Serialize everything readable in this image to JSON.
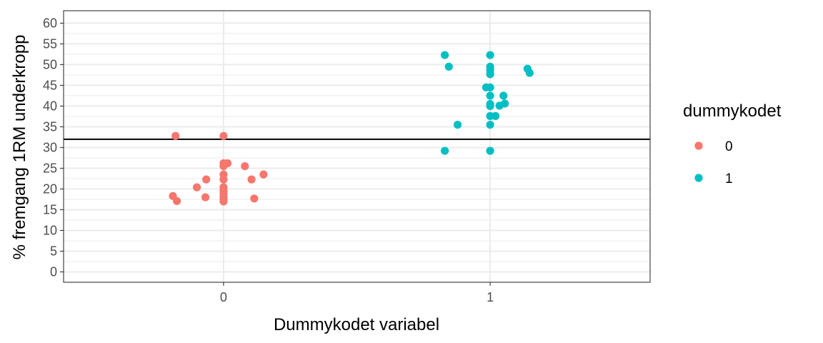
{
  "chart_data": {
    "type": "scatter",
    "title": "",
    "xlabel": "Dummykodet variabel",
    "ylabel": "% fremgang 1RM underkropp",
    "x_categories": [
      "0",
      "1"
    ],
    "xlim": [
      -0.6,
      1.6
    ],
    "ylim": [
      -2.5,
      63
    ],
    "y_ticks": [
      0,
      5,
      10,
      15,
      20,
      25,
      30,
      35,
      40,
      45,
      50,
      55,
      60
    ],
    "y_tick_labels": [
      "0",
      "5",
      "10",
      "15",
      "20",
      "25",
      "30",
      "35",
      "40",
      "45",
      "50",
      "55",
      "60"
    ],
    "hline": 32,
    "grid": true,
    "legend": {
      "title": "dummykodet",
      "placement": "right"
    },
    "series": [
      {
        "name": "0",
        "color": "#F8766D",
        "points": [
          {
            "x": -0.18,
            "y": 32.8
          },
          {
            "x": 0.0,
            "y": 32.8
          },
          {
            "x": 0.0,
            "y": 26.2
          },
          {
            "x": 0.015,
            "y": 26.2
          },
          {
            "x": 0.0,
            "y": 25.5
          },
          {
            "x": 0.08,
            "y": 25.5
          },
          {
            "x": 0.15,
            "y": 23.5
          },
          {
            "x": 0.0,
            "y": 23.5
          },
          {
            "x": -0.065,
            "y": 22.3
          },
          {
            "x": 0.0,
            "y": 22.3
          },
          {
            "x": 0.105,
            "y": 22.3
          },
          {
            "x": -0.1,
            "y": 20.4
          },
          {
            "x": 0.0,
            "y": 20.4
          },
          {
            "x": 0.0,
            "y": 19.6
          },
          {
            "x": 0.0,
            "y": 18.8
          },
          {
            "x": -0.19,
            "y": 18.3
          },
          {
            "x": 0.0,
            "y": 18.1
          },
          {
            "x": -0.068,
            "y": 18.0
          },
          {
            "x": 0.115,
            "y": 17.7
          },
          {
            "x": 0.0,
            "y": 17.5
          },
          {
            "x": -0.175,
            "y": 17.1
          },
          {
            "x": 0.0,
            "y": 17.0
          }
        ]
      },
      {
        "name": "1",
        "color": "#00BFC4",
        "points": [
          {
            "x": 0.83,
            "y": 52.3
          },
          {
            "x": 1.0,
            "y": 52.3
          },
          {
            "x": 0.845,
            "y": 49.5
          },
          {
            "x": 1.0,
            "y": 49.5
          },
          {
            "x": 1.0,
            "y": 48.7
          },
          {
            "x": 1.0,
            "y": 47.7
          },
          {
            "x": 1.14,
            "y": 49.0
          },
          {
            "x": 1.148,
            "y": 48.0
          },
          {
            "x": 0.985,
            "y": 44.5
          },
          {
            "x": 1.0,
            "y": 44.5
          },
          {
            "x": 1.0,
            "y": 42.5
          },
          {
            "x": 1.05,
            "y": 42.5
          },
          {
            "x": 1.0,
            "y": 40.5
          },
          {
            "x": 1.0,
            "y": 40.0
          },
          {
            "x": 1.035,
            "y": 40.1
          },
          {
            "x": 1.055,
            "y": 40.6
          },
          {
            "x": 1.0,
            "y": 37.6
          },
          {
            "x": 1.02,
            "y": 37.6
          },
          {
            "x": 0.878,
            "y": 35.5
          },
          {
            "x": 1.0,
            "y": 35.5
          },
          {
            "x": 0.83,
            "y": 29.2
          },
          {
            "x": 1.0,
            "y": 29.2
          }
        ]
      }
    ]
  }
}
